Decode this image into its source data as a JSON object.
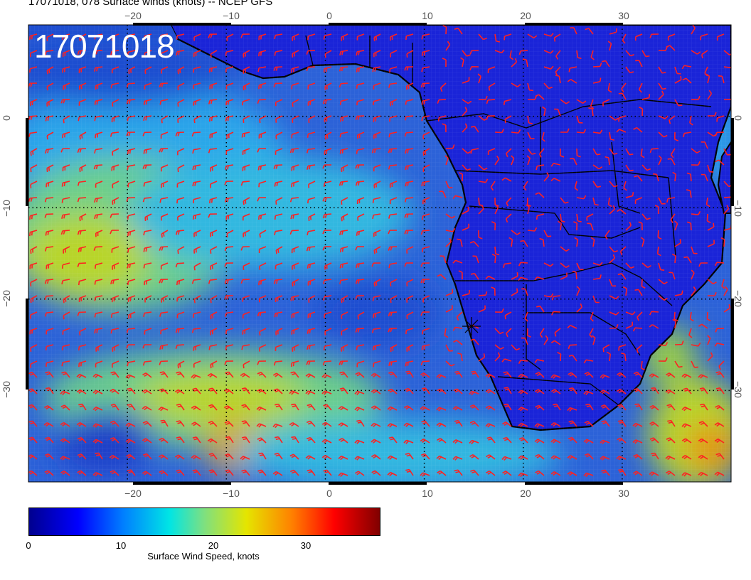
{
  "title": "17071018, 078 Surface winds (knots) -- NCEP GFS",
  "stamp": "17071018",
  "axes": {
    "lon_ticks_top": [
      "−20",
      "−10",
      "0",
      "10",
      "20",
      "30"
    ],
    "lon_ticks_bottom": [
      "−20",
      "−10",
      "0",
      "10",
      "20",
      "30"
    ],
    "lat_ticks_left": [
      "0",
      "−10",
      "−20",
      "−30"
    ],
    "lat_ticks_right": [
      "0",
      "−10",
      "−20",
      "−30"
    ]
  },
  "map": {
    "lon_range": [
      -30,
      41
    ],
    "lat_range": [
      -40,
      10
    ],
    "graticule_lon": [
      -20,
      -10,
      0,
      10,
      20,
      30
    ],
    "graticule_lat": [
      0,
      -10,
      -20,
      -30
    ],
    "barb_color": "#ff2020",
    "coast_color": "#000000"
  },
  "colorbar": {
    "ticks": [
      "0",
      "10",
      "20",
      "30"
    ],
    "label": "Surface Wind Speed, knots",
    "range": [
      0,
      38
    ]
  }
}
